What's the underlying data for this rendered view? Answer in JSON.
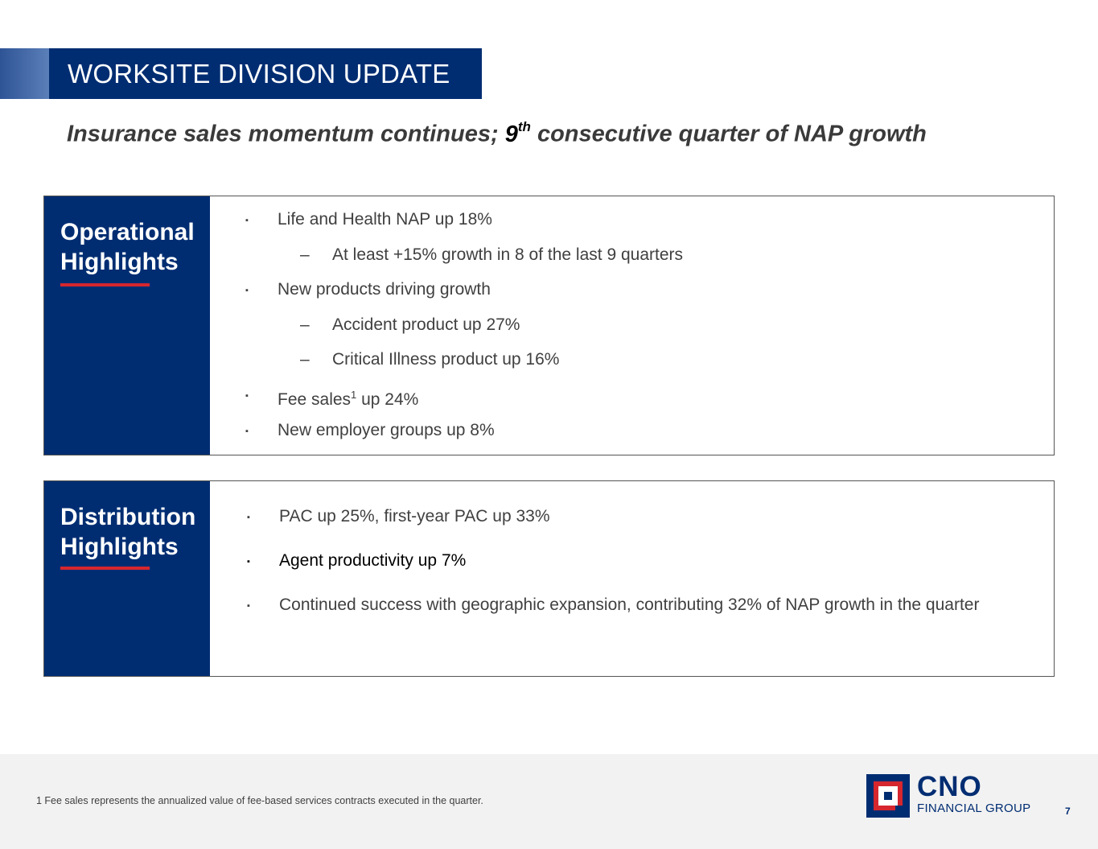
{
  "header": {
    "title": "WORKSITE DIVISION UPDATE",
    "subtitle_pre": "Insurance sales momentum continues; ",
    "subtitle_num": "9",
    "subtitle_sup": "th",
    "subtitle_post": " consecutive quarter of NAP growth"
  },
  "operational": {
    "heading_line1": "Operational",
    "heading_line2": "Highlights",
    "items": [
      {
        "level": 1,
        "marker": "▪",
        "text": "Life and Health NAP up 18%"
      },
      {
        "level": 2,
        "marker": "–",
        "text": "At least +15% growth in 8 of the last 9 quarters"
      },
      {
        "level": 1,
        "marker": "▪",
        "text": "New products driving growth"
      },
      {
        "level": 2,
        "marker": "–",
        "text": "Accident product up 27%"
      },
      {
        "level": 2,
        "marker": "–",
        "text": "Critical Illness product up 16%"
      },
      {
        "level": 1,
        "marker": "▪",
        "text_pre": "Fee sales",
        "text_sup": "1",
        "text_post": " up 24%"
      },
      {
        "level": 1,
        "marker": "▪",
        "text": "New employer groups up 8%"
      }
    ]
  },
  "distribution": {
    "heading_line1": "Distribution",
    "heading_line2": "Highlights",
    "items": [
      {
        "marker": "▪",
        "text": "PAC up 25%, first-year PAC up 33%"
      },
      {
        "marker": "▪",
        "text": "Agent productivity up 7%"
      },
      {
        "marker": "▪",
        "text": "Continued success with geographic expansion, contributing 32% of NAP growth in the quarter"
      }
    ]
  },
  "footer": {
    "footnote": "1  Fee sales represents the annualized value of fee-based services contracts executed in the quarter.",
    "logo_name": "CNO",
    "logo_sub": "FINANCIAL GROUP",
    "page_number": "7"
  },
  "colors": {
    "navy": "#002d72",
    "accent_red": "#d6262e",
    "text_gray": "#404040",
    "footer_bg": "#f2f2f2"
  }
}
